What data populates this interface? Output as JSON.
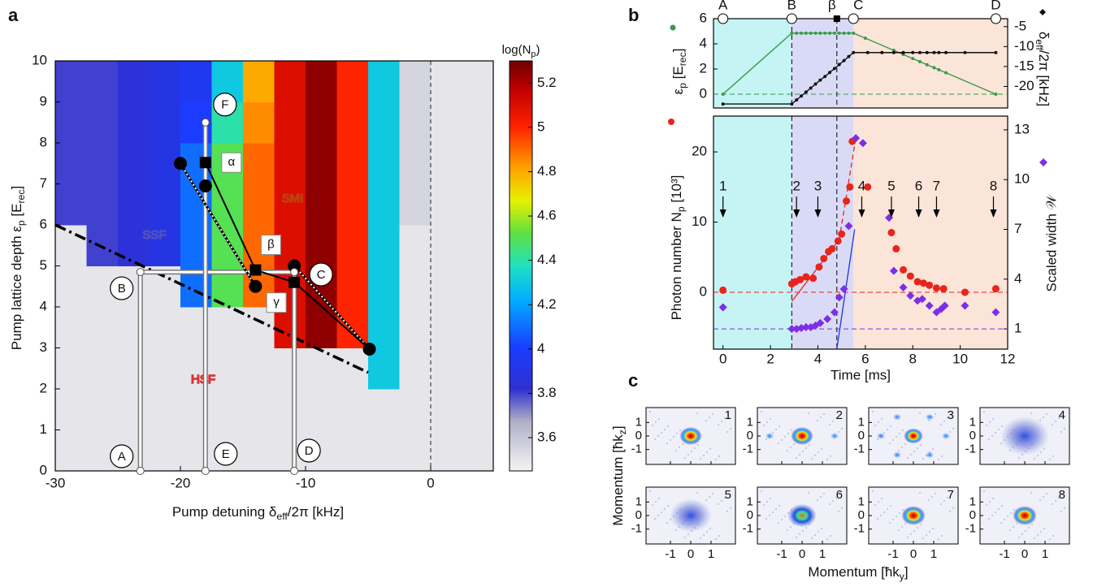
{
  "panel_labels": [
    "a",
    "b",
    "c"
  ],
  "chart_data": [
    {
      "type": "heatmap",
      "xlabel": [
        "Pump detuning δ",
        "eff",
        "/2π [kHz]"
      ],
      "ylabel": [
        "Pump lattice depth  ε",
        "p",
        " [E",
        "rec",
        "]"
      ],
      "xlim": [
        -30,
        5
      ],
      "ylim": [
        0,
        10
      ],
      "xticks": [
        -30,
        -20,
        -10,
        0
      ],
      "yticks": [
        0,
        1,
        2,
        3,
        4,
        5,
        6,
        7,
        8,
        9,
        10
      ],
      "x_edges": [
        -30,
        -27.5,
        -25,
        -22.5,
        -20,
        -17.5,
        -15,
        -12.5,
        -10,
        -7.5,
        -5,
        -2.5,
        0,
        2.5,
        5
      ],
      "y_edges": [
        0,
        1,
        2,
        3,
        4,
        5,
        6,
        7,
        8,
        9,
        10
      ],
      "z": [
        [
          3.5,
          3.5,
          3.5,
          3.5,
          3.5,
          3.5,
          3.5,
          3.5,
          3.5,
          3.5,
          3.5,
          3.5,
          3.5,
          3.5
        ],
        [
          3.5,
          3.5,
          3.5,
          3.5,
          3.5,
          3.5,
          3.5,
          3.5,
          3.5,
          3.5,
          3.5,
          3.5,
          3.5,
          3.5
        ],
        [
          3.5,
          3.5,
          3.5,
          3.5,
          3.5,
          3.5,
          3.5,
          3.5,
          3.5,
          3.5,
          4.3,
          3.5,
          3.5,
          3.5
        ],
        [
          3.5,
          3.5,
          3.5,
          3.5,
          3.5,
          3.5,
          3.5,
          5.1,
          5.25,
          5.0,
          4.3,
          3.5,
          3.5,
          3.5
        ],
        [
          3.5,
          3.5,
          3.5,
          3.5,
          4.1,
          4.5,
          4.9,
          5.1,
          5.25,
          5.0,
          4.3,
          3.5,
          3.5,
          3.5
        ],
        [
          3.5,
          3.8,
          3.85,
          3.9,
          4.1,
          4.5,
          4.9,
          5.1,
          5.25,
          5.0,
          4.3,
          3.5,
          3.5,
          3.5
        ],
        [
          3.8,
          3.8,
          3.85,
          3.9,
          4.1,
          4.5,
          4.9,
          5.1,
          5.25,
          5.0,
          4.3,
          3.55,
          3.5,
          3.5
        ],
        [
          3.8,
          3.8,
          3.85,
          3.9,
          4.1,
          4.5,
          4.9,
          5.1,
          5.25,
          5.0,
          4.3,
          3.55,
          3.5,
          3.5
        ],
        [
          3.8,
          3.8,
          3.85,
          3.9,
          4.0,
          4.4,
          4.85,
          5.1,
          5.25,
          5.0,
          4.3,
          3.55,
          3.5,
          3.5
        ],
        [
          3.8,
          3.8,
          3.85,
          3.9,
          3.95,
          4.3,
          4.8,
          5.1,
          5.25,
          5.0,
          4.3,
          3.55,
          3.5,
          3.5
        ]
      ],
      "colorbar": {
        "label": [
          "log(N",
          "p",
          ")"
        ],
        "lim": [
          3.45,
          5.3
        ],
        "ticks": [
          3.6,
          3.8,
          4,
          4.2,
          4.4,
          4.6,
          4.8,
          5,
          5.2
        ]
      },
      "regions": [
        "SSF",
        "SMI",
        "HSF"
      ],
      "boundary": {
        "x": [
          -30,
          -5
        ],
        "y": [
          6,
          2.4
        ]
      },
      "zero_line": 0,
      "nodes": {
        "labels": [
          "A",
          "B",
          "E",
          "F",
          "D",
          "C"
        ],
        "x": [
          -23.2,
          -23.2,
          -18,
          -18,
          -10.9,
          -10.9
        ],
        "y": [
          0,
          4.85,
          0,
          8.5,
          0,
          4.85
        ]
      },
      "points": {
        "x": [
          -20,
          -18,
          -14,
          -10.9,
          -4.9
        ],
        "y": [
          7.5,
          6.95,
          4.5,
          5.0,
          2.97
        ]
      },
      "squares": {
        "labels": [
          "α",
          "β",
          "γ"
        ],
        "x": [
          -18,
          -14,
          -10.9
        ],
        "y": [
          7.52,
          4.9,
          4.6
        ]
      }
    },
    {
      "type": "line",
      "ylabel": [
        "ε",
        "p",
        " [E",
        "rec",
        "]"
      ],
      "y2label": [
        "δ",
        "eff",
        "/2π [kHz]"
      ],
      "xlim": [
        -0.4,
        12
      ],
      "ylim": [
        -1.1,
        6
      ],
      "yticks": [
        0,
        2,
        4,
        6
      ],
      "y2lim": [
        -25.4,
        -3
      ],
      "y2ticks": [
        -5,
        -10,
        -15,
        -20
      ],
      "stages": {
        "labels": [
          "A",
          "B",
          "β",
          "C",
          "D"
        ],
        "x": [
          0,
          2.9,
          4.8,
          5.5,
          11.5
        ]
      },
      "bands": {
        "edges": [
          -0.4,
          2.9,
          5.5,
          12
        ],
        "colors": [
          "#c6f4f4",
          "#d9dbf6",
          "#fbe4d8"
        ]
      },
      "vlines": [
        2.9,
        4.8
      ],
      "hline": 0,
      "series": [
        {
          "color": "#3a9a4a",
          "x": [
            0,
            2.9,
            3.1,
            3.3,
            3.5,
            3.7,
            3.9,
            4.1,
            4.3,
            4.5,
            4.7,
            4.9,
            5.1,
            5.3,
            5.5,
            6.0,
            7.2,
            7.6,
            8.0,
            8.3,
            8.6,
            8.9,
            9.1,
            9.4,
            11.5
          ],
          "values": [
            0,
            4.85,
            4.85,
            4.85,
            4.85,
            4.85,
            4.85,
            4.85,
            4.85,
            4.85,
            4.85,
            4.85,
            4.85,
            4.85,
            4.85,
            4.45,
            3.48,
            3.15,
            2.83,
            2.59,
            2.34,
            2.1,
            1.94,
            1.7,
            0
          ]
        },
        {
          "color": "#111111",
          "axis": "y2",
          "x": [
            0,
            2.9,
            3.1,
            3.3,
            3.5,
            3.7,
            3.9,
            4.1,
            4.3,
            4.5,
            4.7,
            4.9,
            5.1,
            5.3,
            5.5,
            6.1,
            6.7,
            7.2,
            7.6,
            8.0,
            8.3,
            8.6,
            8.9,
            9.1,
            9.4,
            10.2,
            11.5
          ],
          "values": [
            -24.4,
            -24.4,
            -23.4,
            -22.4,
            -21.4,
            -20.4,
            -19.4,
            -18.4,
            -17.5,
            -16.5,
            -15.5,
            -14.5,
            -13.5,
            -12.5,
            -11.5,
            -11.5,
            -11.5,
            -11.5,
            -11.5,
            -11.5,
            -11.5,
            -11.5,
            -11.5,
            -11.5,
            -11.5,
            -11.5,
            -11.5
          ]
        }
      ]
    },
    {
      "type": "scatter",
      "xlabel": "Time [ms]",
      "xlim": [
        -0.4,
        12
      ],
      "xticks": [
        0,
        2,
        4,
        6,
        8,
        10,
        12
      ],
      "ylabel": [
        "Photon number  N",
        "p",
        "  [10³]"
      ],
      "ylim": [
        -8.1,
        25.1
      ],
      "yticks": [
        0,
        10,
        20
      ],
      "y2label": "Scaled width 𝒲",
      "y2lim": [
        -0.22,
        13.83
      ],
      "y2ticks": [
        1,
        4,
        7,
        10,
        13
      ],
      "bands": {
        "edges": [
          -0.4,
          2.9,
          5.5,
          12
        ],
        "colors": [
          "#c6f4f4",
          "#d9dbf6",
          "#fbe4d8"
        ]
      },
      "vlines": [
        2.9,
        4.8
      ],
      "hline": 0,
      "hline2": 1,
      "series": [
        {
          "color": "#e8241c",
          "marker": "circle",
          "x": [
            0,
            2.9,
            3.05,
            3.25,
            3.5,
            3.8,
            4.05,
            4.25,
            4.45,
            4.6,
            4.85,
            5.0,
            5.2,
            5.35,
            5.45,
            6.1,
            7.1,
            7.3,
            7.6,
            7.9,
            8.2,
            8.45,
            8.7,
            9.0,
            9.3,
            10.2,
            11.5
          ],
          "values": [
            0.3,
            1.2,
            1.5,
            1.8,
            2.2,
            2.0,
            3.6,
            4.8,
            5.8,
            6.2,
            7.3,
            8.3,
            13,
            15,
            21.5,
            15,
            8.5,
            6.2,
            3.2,
            2.3,
            1.5,
            1.3,
            1.0,
            0.6,
            0.5,
            0.0,
            0.5
          ]
        },
        {
          "color": "#7d2ee6",
          "marker": "diamond",
          "axis": "y2",
          "x": [
            0,
            2.9,
            3.1,
            3.3,
            3.5,
            3.7,
            3.9,
            4.1,
            4.4,
            4.7,
            4.9,
            5.1,
            5.3,
            5.6,
            5.9,
            7.0,
            7.2,
            7.6,
            7.9,
            8.2,
            8.4,
            8.7,
            9.0,
            9.2,
            9.35,
            10.2,
            11.5
          ],
          "values": [
            2.3,
            1.0,
            1.0,
            1.05,
            1.1,
            1.1,
            1.2,
            1.35,
            1.6,
            2.0,
            2.9,
            3.4,
            7.2,
            12.5,
            12.2,
            7.7,
            4.5,
            3.5,
            3.0,
            2.7,
            2.8,
            2.4,
            2.0,
            2.2,
            2.4,
            2.4,
            2.0
          ]
        }
      ],
      "fits": [
        {
          "color": "#e8241c",
          "dash": false,
          "x": [
            2.9,
            4.9
          ],
          "values": [
            -1.3,
            7.5
          ]
        },
        {
          "color": "#e8241c",
          "dash": true,
          "x": [
            4.9,
            5.6
          ],
          "values": [
            7.5,
            22
          ]
        },
        {
          "color": "#2233dd",
          "dash": false,
          "axis": "y2",
          "x": [
            4.8,
            5.55
          ],
          "values": [
            -0.2,
            7.0
          ]
        }
      ],
      "arrows": {
        "labels": [
          "1",
          "2",
          "3",
          "4",
          "5",
          "6",
          "7",
          "8"
        ],
        "x": [
          0,
          3.1,
          4.0,
          5.85,
          7.1,
          8.25,
          9.0,
          11.4
        ]
      }
    }
  ],
  "momentum_images": {
    "xlabel": [
      "Momentum [ħk",
      "y",
      "]"
    ],
    "ylabel": [
      "Momentum [ħk",
      "z",
      "]"
    ],
    "xlim": [
      -2.2,
      2.2
    ],
    "ylim": [
      -2.1,
      2.1
    ],
    "xticks": [
      -1,
      0,
      1
    ],
    "yticks": [
      1,
      0,
      -1
    ],
    "labels": [
      "1",
      "2",
      "3",
      "4",
      "5",
      "6",
      "7",
      "8"
    ]
  }
}
